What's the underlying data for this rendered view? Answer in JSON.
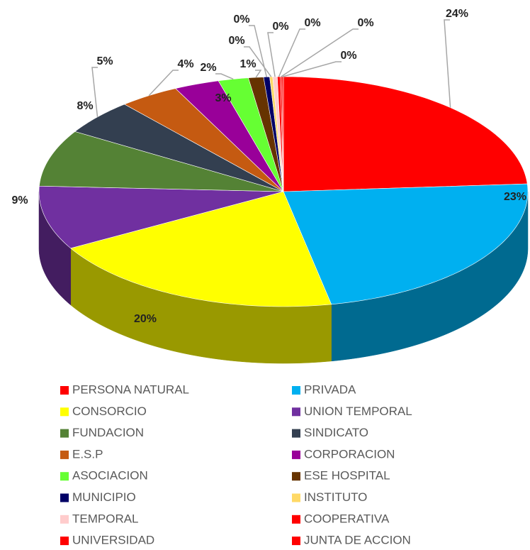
{
  "chart_data": {
    "type": "pie3d",
    "categories": [
      "PERSONA NATURAL",
      "PRIVADA",
      "CONSORCIO",
      "UNION TEMPORAL",
      "FUNDACION",
      "SINDICATO",
      "E.S.P",
      "CORPORACION",
      "ASOCIACION",
      "ESE HOSPITAL",
      "MUNICIPIO",
      "INSTITUTO",
      "TEMPORAL",
      "COOPERATIVA",
      "UNIVERSIDAD",
      "JUNTA DE ACCION"
    ],
    "values": [
      24,
      23,
      20,
      9,
      8,
      5,
      4,
      3,
      2,
      1,
      0.4,
      0.2,
      0.3,
      0.2,
      0.1,
      0.1
    ],
    "value_labels": [
      "24%",
      "23%",
      "20%",
      "9%",
      "8%",
      "5%",
      "4%",
      "3%",
      "2%",
      "1%",
      "0%",
      "0%",
      "0%",
      "0%",
      "0%",
      "0%"
    ],
    "colors": [
      "#ff0000",
      "#00b0f0",
      "#ffff00",
      "#7030a0",
      "#548235",
      "#333f50",
      "#c55a11",
      "#990099",
      "#66ff33",
      "#663300",
      "#000066",
      "#ffd966",
      "#ffcccc",
      "#ff0000",
      "#ff0000",
      "#ff0000"
    ],
    "legend": "bottom"
  }
}
